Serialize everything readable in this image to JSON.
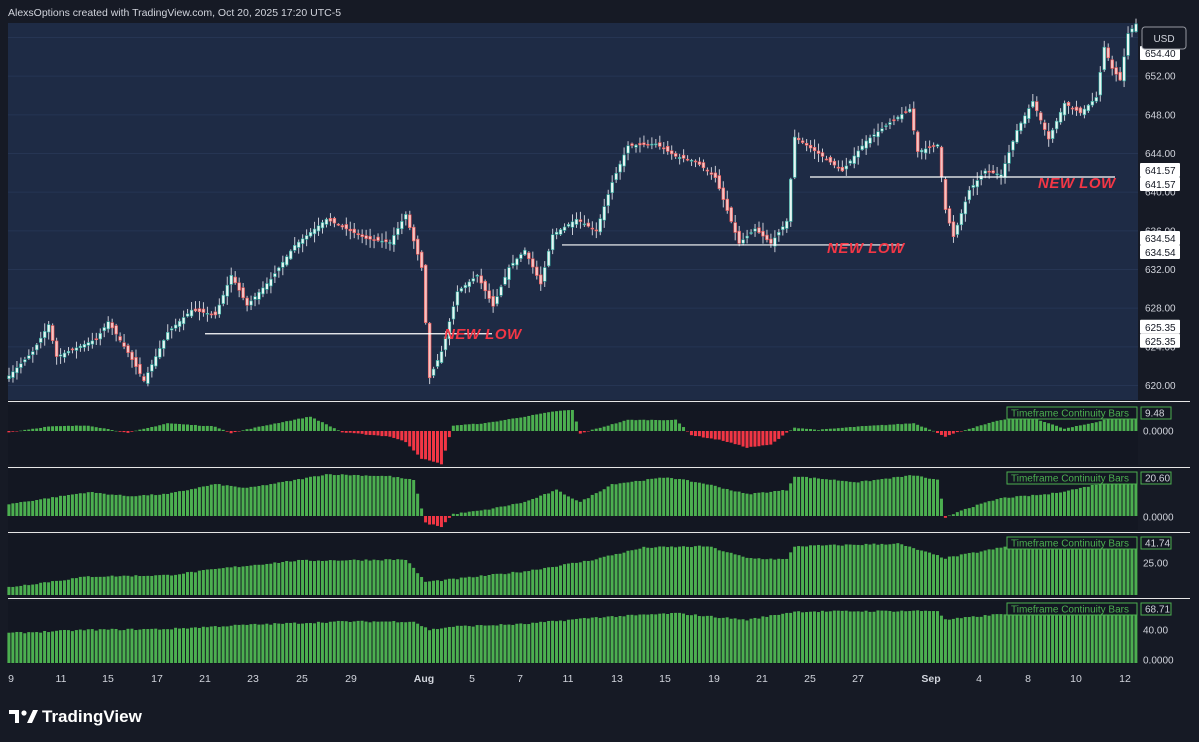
{
  "header": {
    "credit": "AlexsOptions created with TradingView.com, Oct 20, 2025 17:20 UTC-5",
    "brand": "TradingView"
  },
  "price_axis": {
    "currency": "USD",
    "ticks": [
      "620.00",
      "624.00",
      "628.00",
      "632.00",
      "636.00",
      "640.00",
      "644.00",
      "648.00",
      "652.00",
      "656.00"
    ],
    "badges": [
      "654.40",
      "641.57",
      "641.57",
      "634.54",
      "634.54",
      "625.35",
      "625.35"
    ]
  },
  "time_axis": {
    "labels": [
      "9",
      "11",
      "15",
      "17",
      "21",
      "23",
      "25",
      "29",
      "Aug",
      "5",
      "7",
      "11",
      "13",
      "15",
      "19",
      "21",
      "25",
      "27",
      "Sep",
      "4",
      "8",
      "10",
      "12"
    ]
  },
  "annotations": [
    {
      "text": "NEW LOW",
      "price": 625.35
    },
    {
      "text": "NEW LOW",
      "price": 634.54
    },
    {
      "text": "NEW LOW",
      "price": 641.57
    }
  ],
  "colors": {
    "background": "#161a25",
    "price_pane": "#1e2b45",
    "candle_up": "#26a69a",
    "candle_down": "#ef5350",
    "hist_up": "#4caf50",
    "hist_down": "#f23645",
    "annotation": "#f23645",
    "level_line": "#ffffff",
    "panel_label_border": "#4caf50"
  },
  "chart_data": [
    {
      "type": "candlestick",
      "title": "",
      "ylim": [
        618.5,
        657.5
      ],
      "x_range": [
        "Jul 9",
        "Sep 12"
      ],
      "levels": [
        625.35,
        634.54,
        641.57
      ],
      "path": [
        {
          "i": 0,
          "p": 621.0
        },
        {
          "i": 6,
          "p": 623.5
        },
        {
          "i": 10,
          "p": 626.3
        },
        {
          "i": 12,
          "p": 623.0
        },
        {
          "i": 22,
          "p": 624.8
        },
        {
          "i": 25,
          "p": 626.6
        },
        {
          "i": 30,
          "p": 623.4
        },
        {
          "i": 34,
          "p": 620.5
        },
        {
          "i": 40,
          "p": 625.5
        },
        {
          "i": 46,
          "p": 627.8
        },
        {
          "i": 52,
          "p": 627.3
        },
        {
          "i": 56,
          "p": 631.4
        },
        {
          "i": 60,
          "p": 628.3
        },
        {
          "i": 66,
          "p": 631.0
        },
        {
          "i": 72,
          "p": 634.5
        },
        {
          "i": 80,
          "p": 637.2
        },
        {
          "i": 86,
          "p": 636.0
        },
        {
          "i": 90,
          "p": 635.2
        },
        {
          "i": 96,
          "p": 634.8
        },
        {
          "i": 100,
          "p": 637.7
        },
        {
          "i": 104,
          "p": 632.2
        },
        {
          "i": 106,
          "p": 620.8
        },
        {
          "i": 109,
          "p": 623.5
        },
        {
          "i": 113,
          "p": 629.7
        },
        {
          "i": 118,
          "p": 631.4
        },
        {
          "i": 122,
          "p": 628.2
        },
        {
          "i": 126,
          "p": 632.2
        },
        {
          "i": 130,
          "p": 634.0
        },
        {
          "i": 134,
          "p": 630.5
        },
        {
          "i": 137,
          "p": 635.6
        },
        {
          "i": 143,
          "p": 637.2
        },
        {
          "i": 148,
          "p": 636.0
        },
        {
          "i": 152,
          "p": 641.0
        },
        {
          "i": 156,
          "p": 644.8
        },
        {
          "i": 163,
          "p": 645.0
        },
        {
          "i": 168,
          "p": 643.7
        },
        {
          "i": 173,
          "p": 643.2
        },
        {
          "i": 178,
          "p": 641.5
        },
        {
          "i": 184,
          "p": 634.7
        },
        {
          "i": 188,
          "p": 636.2
        },
        {
          "i": 192,
          "p": 634.7
        },
        {
          "i": 196,
          "p": 637.0
        },
        {
          "i": 198,
          "p": 645.7
        },
        {
          "i": 204,
          "p": 644.0
        },
        {
          "i": 210,
          "p": 642.2
        },
        {
          "i": 216,
          "p": 645.3
        },
        {
          "i": 222,
          "p": 647.2
        },
        {
          "i": 227,
          "p": 648.6
        },
        {
          "i": 229,
          "p": 644.2
        },
        {
          "i": 234,
          "p": 644.9
        },
        {
          "i": 236,
          "p": 638.2
        },
        {
          "i": 238,
          "p": 635.4
        },
        {
          "i": 242,
          "p": 640.2
        },
        {
          "i": 246,
          "p": 642.2
        },
        {
          "i": 250,
          "p": 641.8
        },
        {
          "i": 254,
          "p": 646.4
        },
        {
          "i": 258,
          "p": 649.4
        },
        {
          "i": 262,
          "p": 645.5
        },
        {
          "i": 266,
          "p": 649.2
        },
        {
          "i": 270,
          "p": 648.2
        },
        {
          "i": 274,
          "p": 649.8
        },
        {
          "i": 276,
          "p": 655.0
        },
        {
          "i": 278,
          "p": 652.8
        },
        {
          "i": 280,
          "p": 651.6
        },
        {
          "i": 282,
          "p": 656.4
        },
        {
          "i": 284,
          "p": 657.4
        }
      ]
    },
    {
      "type": "bar",
      "title": "Timeframe Continuity Bars",
      "value_label": "9.48",
      "ticks": [
        "0.0000"
      ],
      "ylim": [
        -12,
        9.48
      ],
      "path": [
        {
          "i": 0,
          "v": -0.5
        },
        {
          "i": 10,
          "v": 2.0
        },
        {
          "i": 20,
          "v": 2.5
        },
        {
          "i": 30,
          "v": -0.8
        },
        {
          "i": 40,
          "v": 3.5
        },
        {
          "i": 52,
          "v": 2.0
        },
        {
          "i": 56,
          "v": -0.8
        },
        {
          "i": 66,
          "v": 3.0
        },
        {
          "i": 76,
          "v": 6.5
        },
        {
          "i": 84,
          "v": -0.5
        },
        {
          "i": 96,
          "v": -2.0
        },
        {
          "i": 100,
          "v": -4.0
        },
        {
          "i": 104,
          "v": -10.0
        },
        {
          "i": 109,
          "v": -12.0
        },
        {
          "i": 112,
          "v": 2.5
        },
        {
          "i": 120,
          "v": 3.5
        },
        {
          "i": 130,
          "v": 6.5
        },
        {
          "i": 138,
          "v": 9.0
        },
        {
          "i": 142,
          "v": 9.48
        },
        {
          "i": 144,
          "v": -1.0
        },
        {
          "i": 148,
          "v": 1.0
        },
        {
          "i": 156,
          "v": 5.0
        },
        {
          "i": 168,
          "v": 5.0
        },
        {
          "i": 172,
          "v": -1.5
        },
        {
          "i": 180,
          "v": -3.5
        },
        {
          "i": 186,
          "v": -6.0
        },
        {
          "i": 192,
          "v": -5.0
        },
        {
          "i": 198,
          "v": 1.5
        },
        {
          "i": 204,
          "v": 0.5
        },
        {
          "i": 214,
          "v": 2.0
        },
        {
          "i": 228,
          "v": 3.5
        },
        {
          "i": 236,
          "v": -2.0
        },
        {
          "i": 244,
          "v": 2.0
        },
        {
          "i": 250,
          "v": 5.0
        },
        {
          "i": 258,
          "v": 6.0
        },
        {
          "i": 266,
          "v": 1.0
        },
        {
          "i": 274,
          "v": 4.0
        },
        {
          "i": 284,
          "v": 9.48
        }
      ]
    },
    {
      "type": "bar",
      "title": "Timeframe Continuity Bars",
      "value_label": "20.60",
      "ticks": [
        "0.0000"
      ],
      "ylim": [
        -5.5,
        20.6
      ],
      "path": [
        {
          "i": 0,
          "v": 6.0
        },
        {
          "i": 10,
          "v": 9.0
        },
        {
          "i": 20,
          "v": 12.0
        },
        {
          "i": 30,
          "v": 10.0
        },
        {
          "i": 40,
          "v": 11.0
        },
        {
          "i": 52,
          "v": 16.0
        },
        {
          "i": 60,
          "v": 14.0
        },
        {
          "i": 72,
          "v": 18.0
        },
        {
          "i": 80,
          "v": 21.0
        },
        {
          "i": 96,
          "v": 20.0
        },
        {
          "i": 102,
          "v": 18.0
        },
        {
          "i": 105,
          "v": -3.0
        },
        {
          "i": 109,
          "v": -4.5
        },
        {
          "i": 112,
          "v": 1.0
        },
        {
          "i": 120,
          "v": 3.0
        },
        {
          "i": 130,
          "v": 7.0
        },
        {
          "i": 138,
          "v": 13.0
        },
        {
          "i": 144,
          "v": 7.0
        },
        {
          "i": 152,
          "v": 16.0
        },
        {
          "i": 166,
          "v": 19.5
        },
        {
          "i": 176,
          "v": 16.0
        },
        {
          "i": 186,
          "v": 11.0
        },
        {
          "i": 196,
          "v": 13.0
        },
        {
          "i": 198,
          "v": 20.0
        },
        {
          "i": 214,
          "v": 17.0
        },
        {
          "i": 228,
          "v": 20.5
        },
        {
          "i": 234,
          "v": 18.0
        },
        {
          "i": 236,
          "v": -1.0
        },
        {
          "i": 240,
          "v": 3.0
        },
        {
          "i": 250,
          "v": 9.0
        },
        {
          "i": 262,
          "v": 11.0
        },
        {
          "i": 270,
          "v": 14.0
        },
        {
          "i": 284,
          "v": 20.6
        }
      ]
    },
    {
      "type": "bar",
      "title": "Timeframe Continuity Bars",
      "value_label": "41.74",
      "ticks": [
        "25.00"
      ],
      "ylim": [
        0,
        41.74
      ],
      "path": [
        {
          "i": 0,
          "v": 6.0
        },
        {
          "i": 20,
          "v": 14.0
        },
        {
          "i": 40,
          "v": 15.0
        },
        {
          "i": 56,
          "v": 21.0
        },
        {
          "i": 72,
          "v": 26.0
        },
        {
          "i": 100,
          "v": 27.0
        },
        {
          "i": 105,
          "v": 10.0
        },
        {
          "i": 112,
          "v": 12.0
        },
        {
          "i": 130,
          "v": 18.0
        },
        {
          "i": 146,
          "v": 26.0
        },
        {
          "i": 160,
          "v": 36.0
        },
        {
          "i": 176,
          "v": 37.0
        },
        {
          "i": 186,
          "v": 28.0
        },
        {
          "i": 196,
          "v": 27.0
        },
        {
          "i": 198,
          "v": 37.0
        },
        {
          "i": 224,
          "v": 39.0
        },
        {
          "i": 236,
          "v": 28.0
        },
        {
          "i": 252,
          "v": 37.0
        },
        {
          "i": 270,
          "v": 41.0
        },
        {
          "i": 284,
          "v": 41.74
        }
      ]
    },
    {
      "type": "bar",
      "title": "Timeframe Continuity Bars",
      "value_label": "68.71",
      "ticks": [
        "40.00",
        "0.0000"
      ],
      "ylim": [
        0,
        68.71
      ],
      "path": [
        {
          "i": 0,
          "v": 36.0
        },
        {
          "i": 20,
          "v": 40.0
        },
        {
          "i": 40,
          "v": 41.0
        },
        {
          "i": 60,
          "v": 46.0
        },
        {
          "i": 84,
          "v": 50.0
        },
        {
          "i": 102,
          "v": 50.0
        },
        {
          "i": 106,
          "v": 40.0
        },
        {
          "i": 112,
          "v": 44.0
        },
        {
          "i": 130,
          "v": 47.0
        },
        {
          "i": 148,
          "v": 55.0
        },
        {
          "i": 168,
          "v": 60.0
        },
        {
          "i": 186,
          "v": 52.0
        },
        {
          "i": 198,
          "v": 62.0
        },
        {
          "i": 234,
          "v": 63.0
        },
        {
          "i": 236,
          "v": 52.0
        },
        {
          "i": 252,
          "v": 60.0
        },
        {
          "i": 270,
          "v": 66.0
        },
        {
          "i": 284,
          "v": 68.71
        }
      ]
    }
  ]
}
